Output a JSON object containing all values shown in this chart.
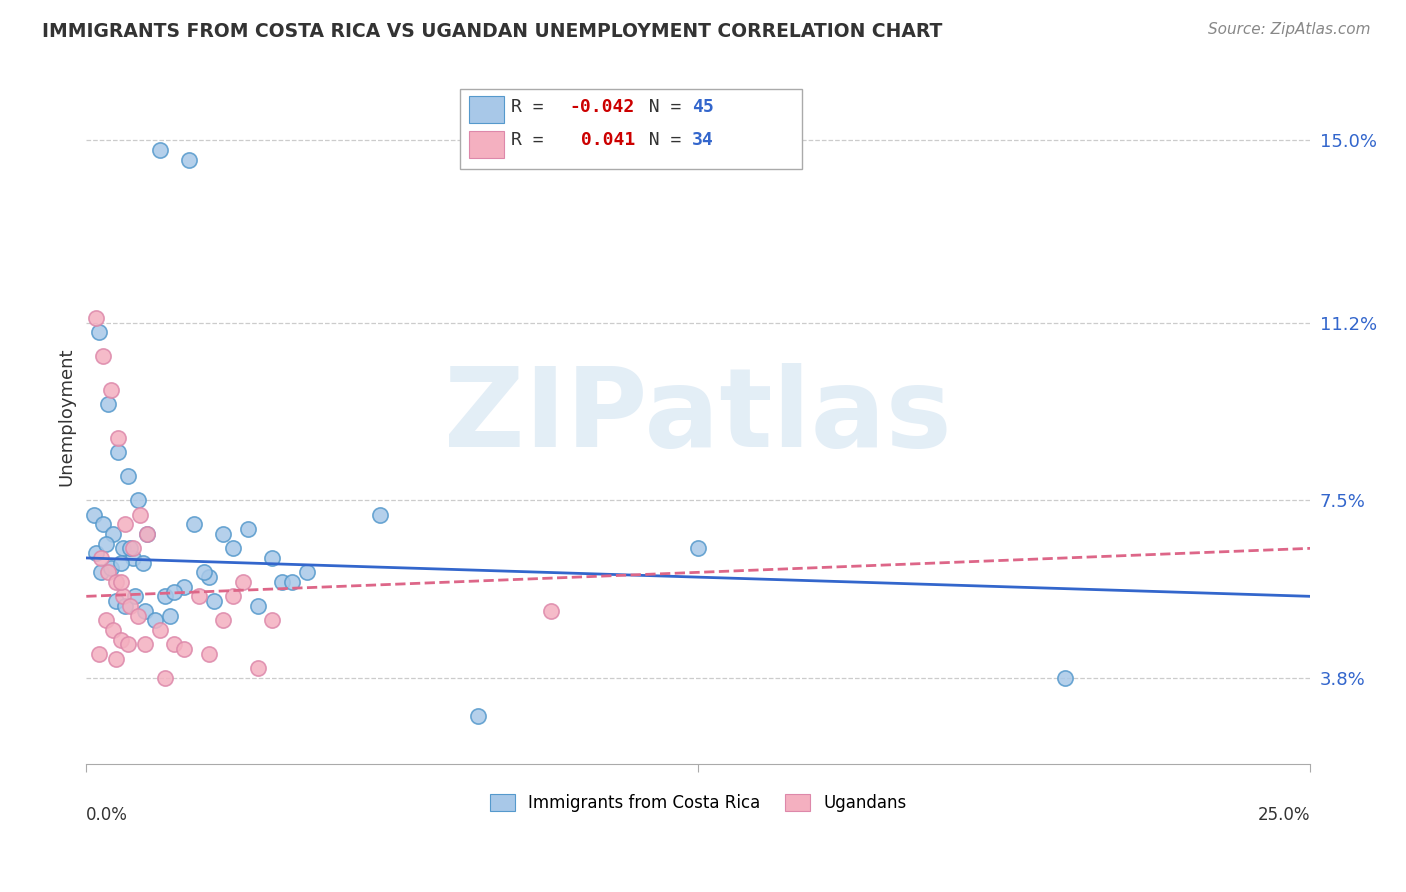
{
  "title": "IMMIGRANTS FROM COSTA RICA VS UGANDAN UNEMPLOYMENT CORRELATION CHART",
  "source": "Source: ZipAtlas.com",
  "ylabel": "Unemployment",
  "yticks": [
    3.8,
    7.5,
    11.2,
    15.0
  ],
  "xlim": [
    0.0,
    25.0
  ],
  "ylim": [
    2.0,
    16.5
  ],
  "watermark": "ZIPatlas",
  "legend_blue_r": "-0.042",
  "legend_blue_n": "45",
  "legend_pink_r": "0.041",
  "legend_pink_n": "34",
  "blue_color": "#a8c8e8",
  "pink_color": "#f4b0c0",
  "blue_line_color": "#3366cc",
  "pink_line_color": "#dd6688",
  "blue_line_start": 6.3,
  "blue_line_end": 5.5,
  "pink_line_start": 5.5,
  "pink_line_end": 6.5,
  "blue_scatter_x": [
    1.5,
    2.1,
    0.25,
    0.45,
    0.65,
    0.85,
    1.05,
    1.25,
    0.15,
    0.35,
    0.55,
    0.75,
    0.95,
    1.15,
    0.3,
    0.5,
    0.7,
    0.9,
    0.2,
    0.4,
    2.2,
    2.8,
    3.3,
    3.0,
    3.8,
    4.5,
    4.0,
    2.5,
    2.0,
    1.6,
    1.8,
    2.4,
    0.6,
    0.8,
    1.0,
    1.2,
    1.4,
    1.7,
    2.6,
    3.5,
    6.0,
    8.0,
    12.5,
    20.0,
    4.2
  ],
  "blue_scatter_y": [
    14.8,
    14.6,
    11.0,
    9.5,
    8.5,
    8.0,
    7.5,
    6.8,
    7.2,
    7.0,
    6.8,
    6.5,
    6.3,
    6.2,
    6.0,
    6.1,
    6.2,
    6.5,
    6.4,
    6.6,
    7.0,
    6.8,
    6.9,
    6.5,
    6.3,
    6.0,
    5.8,
    5.9,
    5.7,
    5.5,
    5.6,
    6.0,
    5.4,
    5.3,
    5.5,
    5.2,
    5.0,
    5.1,
    5.4,
    5.3,
    7.2,
    3.0,
    6.5,
    3.8,
    5.8
  ],
  "pink_scatter_x": [
    0.2,
    0.35,
    0.5,
    0.65,
    0.8,
    0.95,
    1.1,
    1.25,
    0.3,
    0.45,
    0.6,
    0.75,
    0.9,
    1.05,
    0.4,
    0.55,
    0.7,
    0.85,
    0.25,
    2.3,
    2.8,
    3.2,
    3.8,
    1.5,
    1.8,
    2.0,
    2.5,
    1.2,
    0.6,
    3.5,
    9.5,
    3.0,
    1.6,
    0.7
  ],
  "pink_scatter_y": [
    11.3,
    10.5,
    9.8,
    8.8,
    7.0,
    6.5,
    7.2,
    6.8,
    6.3,
    6.0,
    5.8,
    5.5,
    5.3,
    5.1,
    5.0,
    4.8,
    4.6,
    4.5,
    4.3,
    5.5,
    5.0,
    5.8,
    5.0,
    4.8,
    4.5,
    4.4,
    4.3,
    4.5,
    4.2,
    4.0,
    5.2,
    5.5,
    3.8,
    5.8
  ]
}
